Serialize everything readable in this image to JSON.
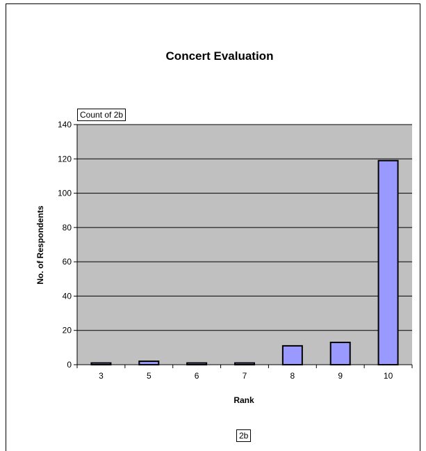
{
  "chart_data": {
    "type": "bar",
    "title": "Concert Evaluation",
    "field_button": "Count of 2b",
    "xlabel": "Rank",
    "ylabel": "No. of Respondents",
    "categories": [
      "3",
      "5",
      "6",
      "7",
      "8",
      "9",
      "10"
    ],
    "values": [
      1,
      2,
      1,
      1,
      11,
      13,
      119
    ],
    "ylim": [
      0,
      140
    ],
    "yticks": [
      0,
      20,
      40,
      60,
      80,
      100,
      120,
      140
    ],
    "grid": true,
    "legend": "2b",
    "colors": {
      "plot_area": "#c0c0c0",
      "bar_fill": "#9999ff",
      "bar_stroke": "#000000",
      "gridline": "#000000"
    }
  }
}
